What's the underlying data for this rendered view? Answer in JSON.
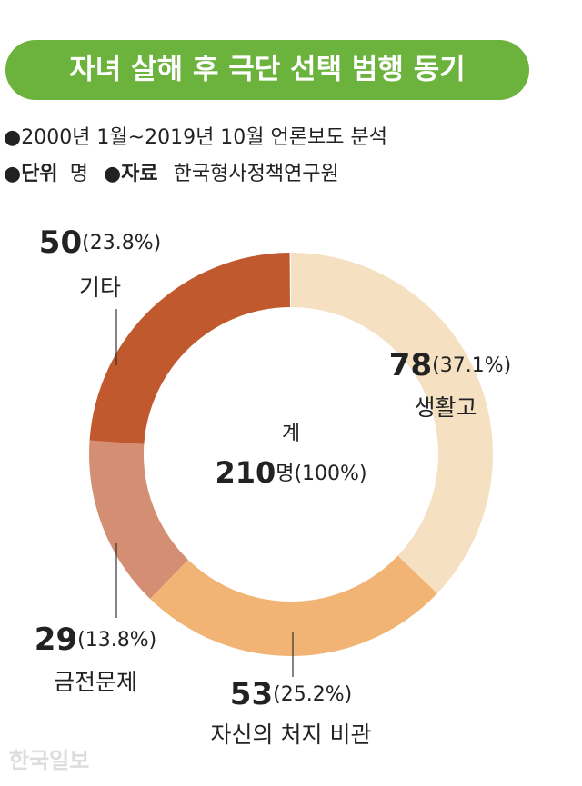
{
  "header": {
    "title": "자녀 살해 후 극단 선택 범행 동기",
    "period": "●2000년 1월~2019년 10월 언론보도 분석",
    "unit_key": "●단위",
    "unit": "명",
    "source_key": "●자료",
    "source": "한국형사정책연구원"
  },
  "chart_data": {
    "type": "donut",
    "categories": [
      "생활고",
      "자신의 처지 비관",
      "금전문제",
      "기타"
    ],
    "values": [
      78,
      53,
      29,
      50
    ],
    "percentages": [
      37.1,
      25.2,
      13.8,
      23.8
    ],
    "percentage_labels": [
      "(37.1%)",
      "(25.2%)",
      "(13.8%)",
      "(23.8%)"
    ],
    "colors": [
      "#f5e1c2",
      "#f1b474",
      "#d48e74",
      "#c1592e"
    ],
    "center_label": "계",
    "total": 210,
    "total_unit_label": "명(100%)"
  },
  "footer": {
    "watermark": "한국일보"
  }
}
